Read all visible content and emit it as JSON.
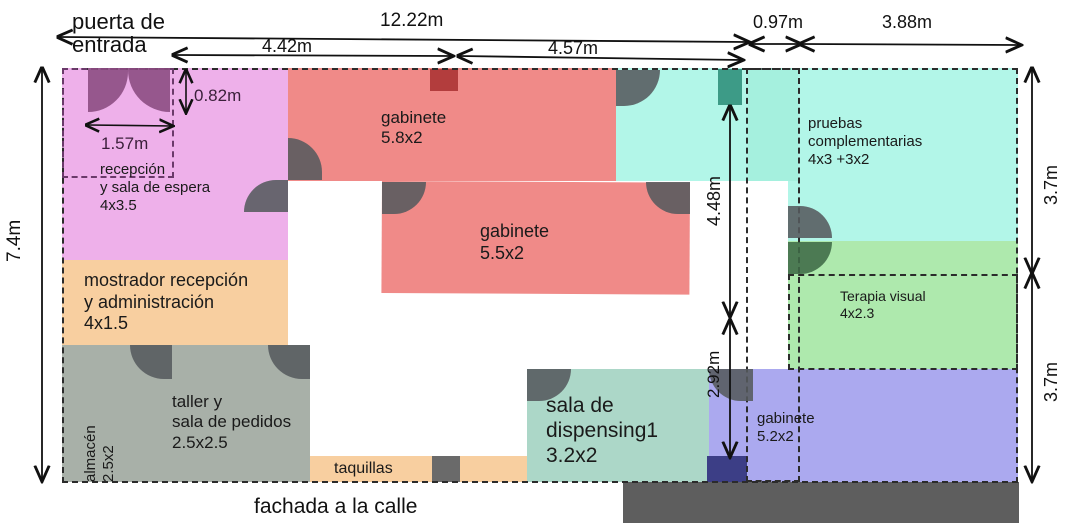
{
  "dimensions": {
    "entrance": "puerta de\nentrada",
    "total_width": "12.22m",
    "w_4_42": "4.42m",
    "w_4_57": "4.57m",
    "w_0_97": "0.97m",
    "w_3_88": "3.88m",
    "door_height": "0.82m",
    "door_width": "1.57m",
    "height_total": "7.4m",
    "h_3_7_top": "3.7m",
    "h_3_7_bottom": "3.7m",
    "h_4_48": "4.48m",
    "h_2_92": "2.92m"
  },
  "rooms": {
    "reception": "recepción\ny sala de espera\n4x3.5",
    "counter": "mostrador recepción\ny administración\n4x1.5",
    "cabinet_top": "gabinete\n5.8x2",
    "cabinet_mid": "gabinete\n5.5x2",
    "tests": "pruebas\ncomplementarias\n4x3 +3x2",
    "therapy": "Terapia visual\n4x2.3",
    "storage": "almacén\n2.5x2",
    "workshop": "taller y\nsala de pedidos\n2.5x2.5",
    "dispensing": "sala de\ndispensing1\n3.2x2",
    "cabinet_bottom": "gabinete\n5.2x2",
    "lockers": "taquillas"
  },
  "footer": {
    "facade": "fachada a la calle"
  },
  "colors": {
    "pink": "#eeb0ea",
    "salmon": "#f08a88",
    "cyan": "#b2f6e8",
    "green": "#aee9ad",
    "orange": "#f8cfa0",
    "gray": "#a8b0a8",
    "teal": "#acd7c8",
    "purple": "#aba9ef",
    "dark": "#5e5e5e"
  }
}
